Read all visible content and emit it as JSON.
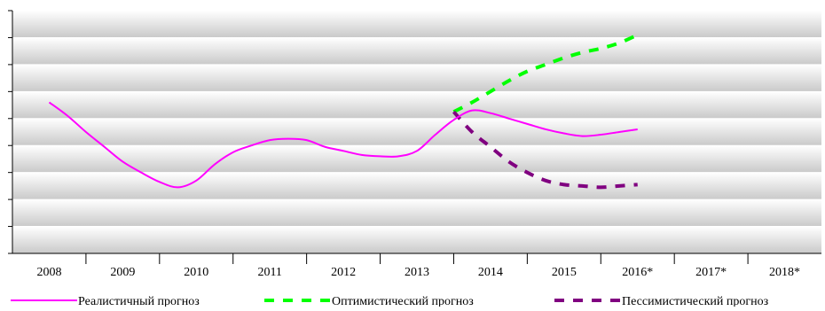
{
  "chart_data": {
    "type": "line",
    "title": "",
    "xlabel": "",
    "ylabel": "",
    "categories": [
      "2008",
      "2009",
      "2010",
      "2011",
      "2012",
      "2013",
      "2014",
      "2015",
      "2016*",
      "2017*",
      "2018*"
    ],
    "ylim": [
      0,
      9
    ],
    "grid": true,
    "legend_position": "bottom",
    "series": [
      {
        "name": "Реалистичный прогноз",
        "color": "#ff00ff",
        "style": "solid",
        "points": [
          [
            0.0,
            5.6
          ],
          [
            0.5,
            5.1
          ],
          [
            1.0,
            4.5
          ],
          [
            1.5,
            3.95
          ],
          [
            2.0,
            3.4
          ],
          [
            2.5,
            3.0
          ],
          [
            3.0,
            2.65
          ],
          [
            3.5,
            2.45
          ],
          [
            4.0,
            2.7
          ],
          [
            4.5,
            3.3
          ],
          [
            5.0,
            3.75
          ],
          [
            5.5,
            4.0
          ],
          [
            6.0,
            4.2
          ],
          [
            6.5,
            4.25
          ],
          [
            7.0,
            4.2
          ],
          [
            7.5,
            3.95
          ],
          [
            8.0,
            3.8
          ],
          [
            8.5,
            3.65
          ],
          [
            9.0,
            3.6
          ],
          [
            9.5,
            3.6
          ],
          [
            10.0,
            3.8
          ],
          [
            10.5,
            4.4
          ],
          [
            11.0,
            4.95
          ],
          [
            11.5,
            5.3
          ],
          [
            12.0,
            5.2
          ],
          [
            12.5,
            5.0
          ],
          [
            13.0,
            4.8
          ],
          [
            13.5,
            4.6
          ],
          [
            14.0,
            4.45
          ],
          [
            14.5,
            4.35
          ],
          [
            15.0,
            4.4
          ],
          [
            15.5,
            4.5
          ],
          [
            16.0,
            4.6
          ]
        ]
      },
      {
        "name": "Оптимистический прогноз",
        "color": "#00ff00",
        "style": "dashed",
        "points": [
          [
            11.0,
            5.25
          ],
          [
            11.5,
            5.6
          ],
          [
            12.0,
            6.0
          ],
          [
            12.5,
            6.4
          ],
          [
            13.0,
            6.75
          ],
          [
            13.5,
            7.0
          ],
          [
            14.0,
            7.25
          ],
          [
            14.5,
            7.45
          ],
          [
            15.0,
            7.6
          ],
          [
            15.5,
            7.8
          ],
          [
            16.0,
            8.1
          ]
        ]
      },
      {
        "name": "Пессимистический прогноз",
        "color": "#800080",
        "style": "dashed",
        "points": [
          [
            11.0,
            5.25
          ],
          [
            11.5,
            4.5
          ],
          [
            12.0,
            3.95
          ],
          [
            12.5,
            3.4
          ],
          [
            13.0,
            3.0
          ],
          [
            13.5,
            2.7
          ],
          [
            14.0,
            2.55
          ],
          [
            14.5,
            2.5
          ],
          [
            15.0,
            2.45
          ],
          [
            15.5,
            2.5
          ],
          [
            16.0,
            2.55
          ]
        ]
      }
    ]
  }
}
